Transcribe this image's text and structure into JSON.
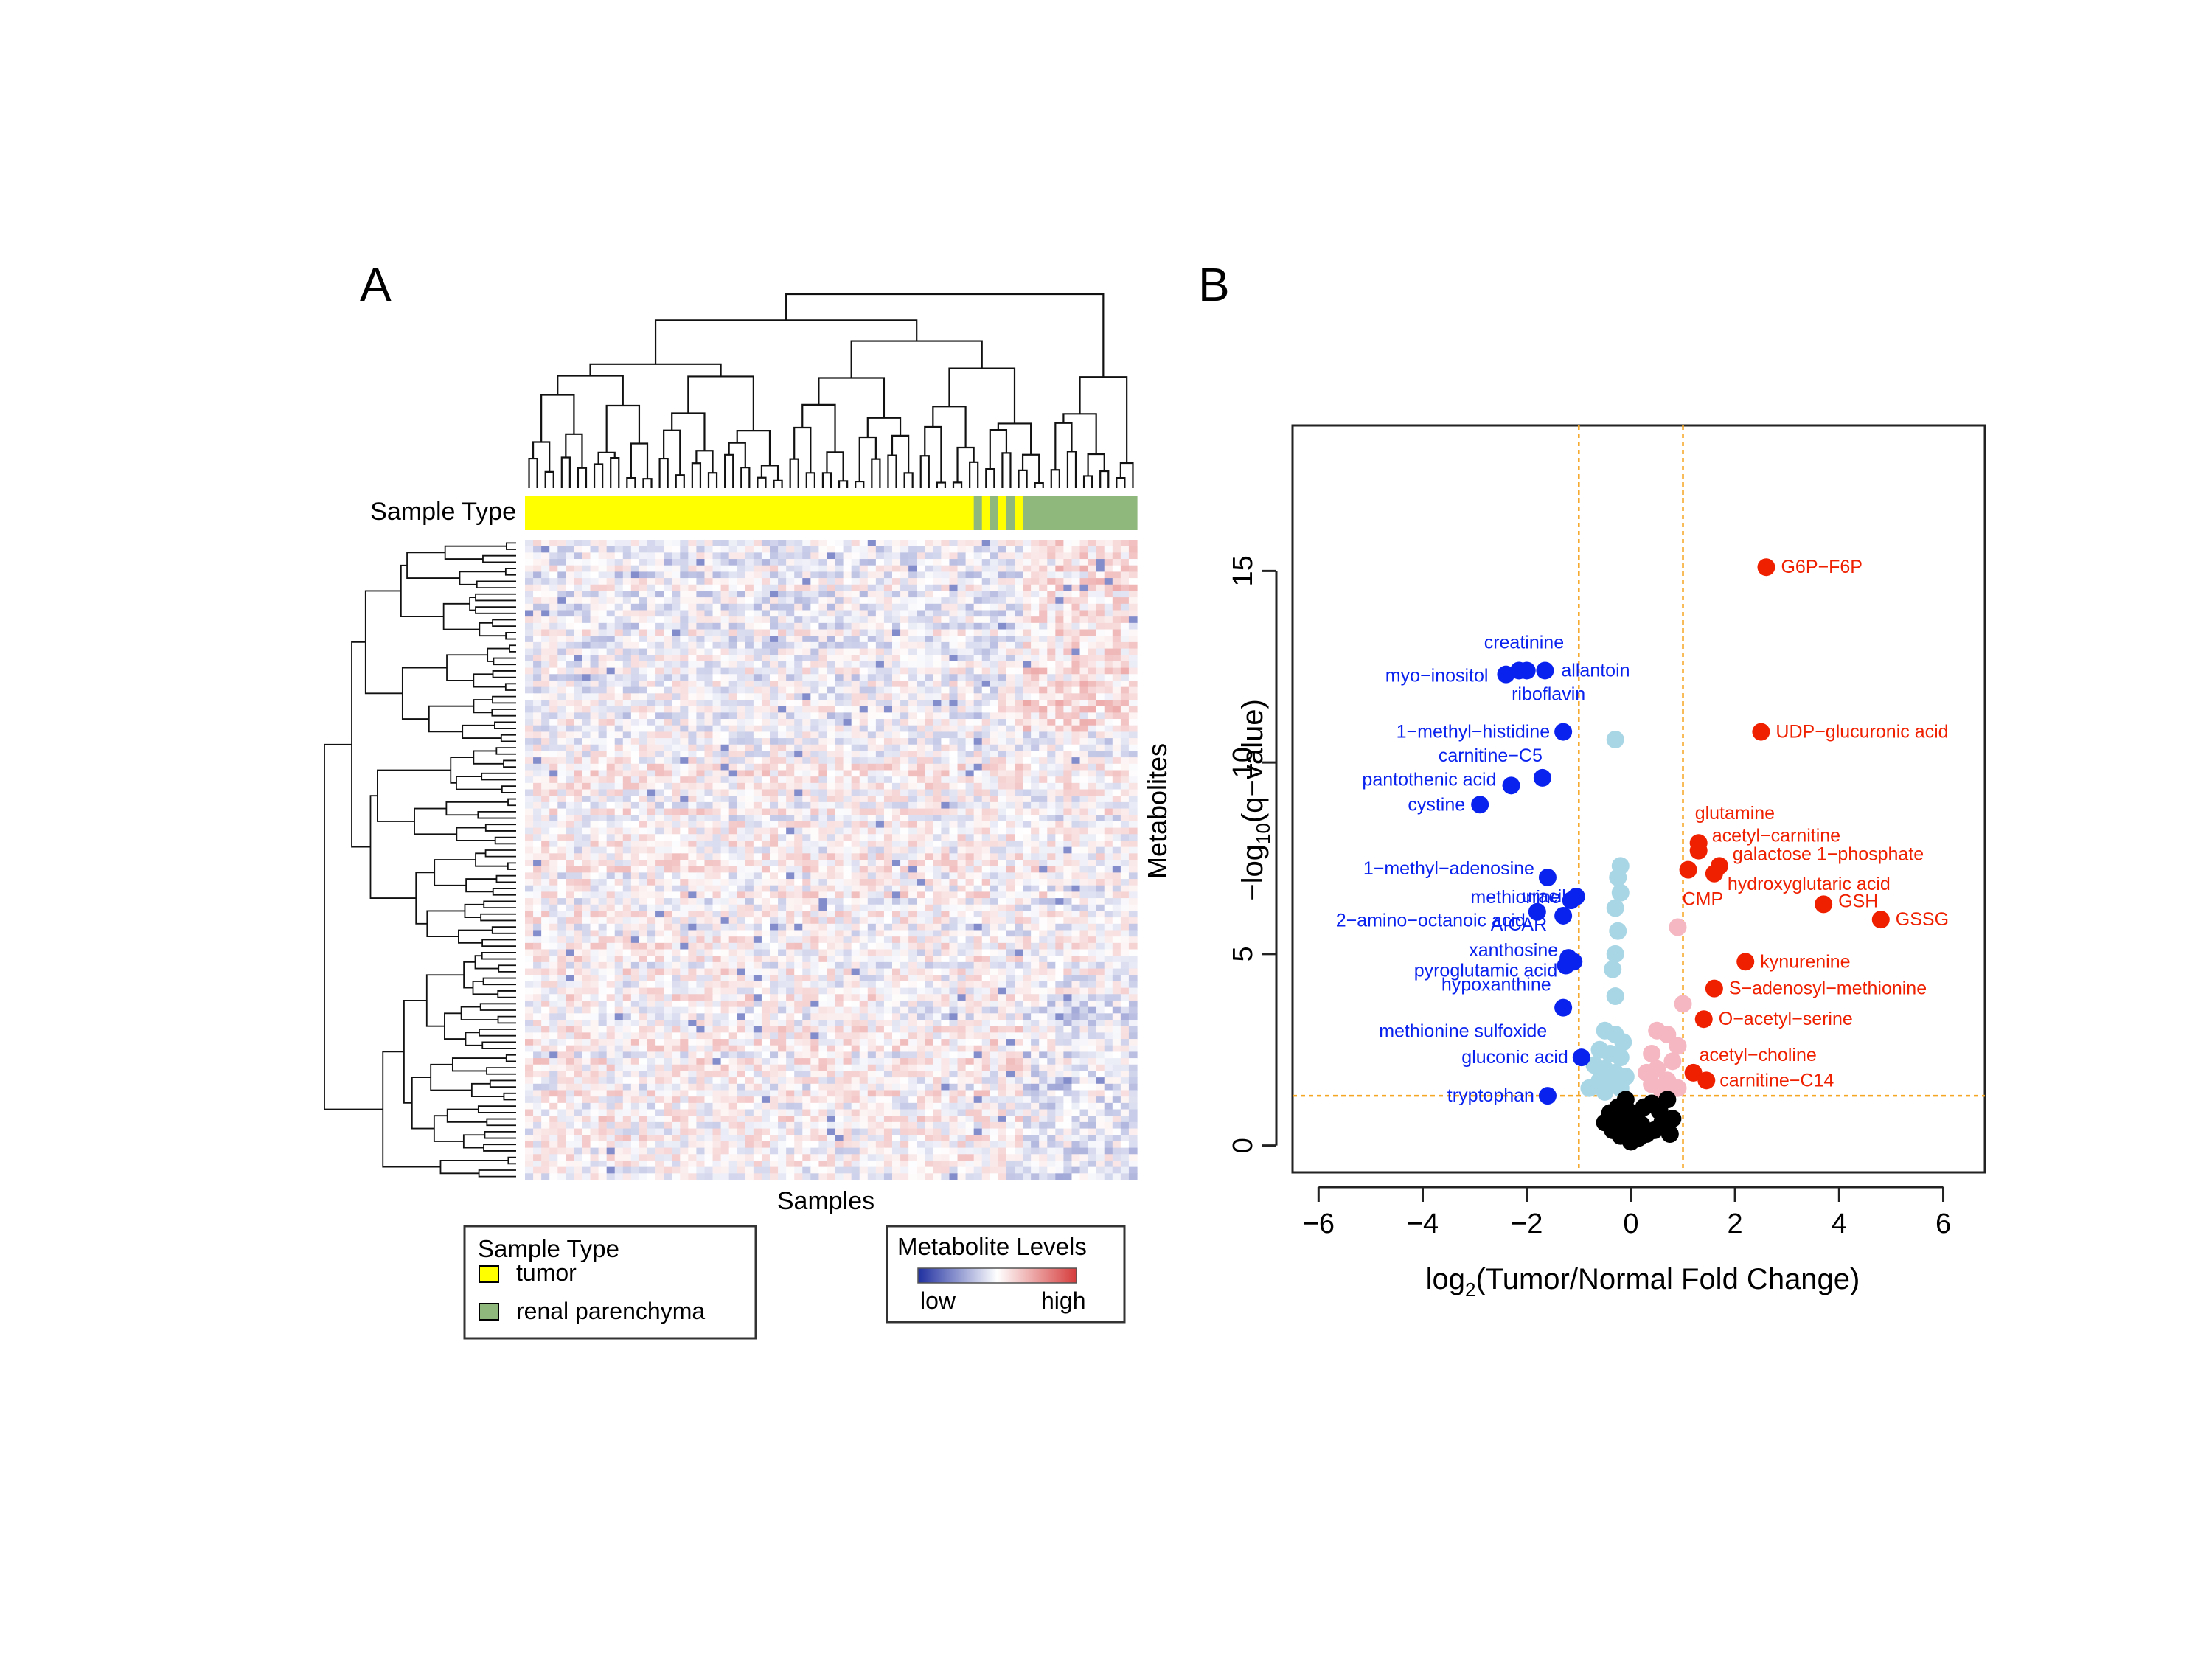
{
  "panel_a": {
    "label": "A",
    "sample_type_label": "Sample Type",
    "metabolites_label": "Metabolites",
    "samples_label": "Samples",
    "sample_groups": [
      {
        "name": "tumor",
        "count": 55,
        "color": "#ffff00"
      },
      {
        "name": "tumor / renal parenchyma (interleaved)",
        "pattern": [
          "#8fb87c",
          "#ffff00",
          "#8fb87c",
          "#ffff00",
          "#8fb87c",
          "#ffff00"
        ]
      },
      {
        "name": "renal parenchyma",
        "count": 20,
        "color": "#8fb87c"
      }
    ],
    "heatmap": {
      "cols": 75,
      "rows": 100,
      "low_color": "#1f2fa0",
      "mid_color": "#ffffff",
      "high_color": "#d63c3c"
    },
    "legend_sample_type": {
      "title": "Sample Type",
      "items": [
        {
          "label": "tumor",
          "color": "#ffff00"
        },
        {
          "label": "renal parenchyma",
          "color": "#8fb87c"
        }
      ]
    },
    "legend_levels": {
      "title": "Metabolite Levels",
      "low": "low",
      "high": "high"
    }
  },
  "panel_b": {
    "label": "B",
    "colors": {
      "down_sig": "#0a22ee",
      "down": "#a9d6e5",
      "up_sig": "#ee2000",
      "up": "#f5b7c2",
      "ns": "#000000",
      "threshold": "#f5a623"
    },
    "chart_data": {
      "type": "scatter",
      "title": "",
      "xlabel_main": "log",
      "xlabel_sub": "2",
      "xlabel_rest": "(Tumor/Normal Fold Change)",
      "ylabel_pre": "−log",
      "ylabel_sub": "10",
      "ylabel_rest": "(q−value)",
      "xlim": [
        -6.5,
        6.8
      ],
      "ylim": [
        -0.7,
        18.8
      ],
      "xticks": [
        -6,
        -4,
        -2,
        0,
        2,
        4,
        6
      ],
      "xtick_labels": [
        "−6",
        "−4",
        "−2",
        "0",
        "2",
        "4",
        "6"
      ],
      "yticks": [
        0,
        5,
        10,
        15
      ],
      "ytick_labels": [
        "0",
        "5",
        "10",
        "15"
      ],
      "thresholds": {
        "x": [
          -1,
          1
        ],
        "y": 1.3
      },
      "labeled_points": [
        {
          "name": "G6P−F6P",
          "x": 2.6,
          "y": 15.1,
          "group": "up_sig"
        },
        {
          "name": "UDP−glucuronic acid",
          "x": 2.5,
          "y": 10.8,
          "group": "up_sig"
        },
        {
          "name": "glutamine",
          "x": 1.3,
          "y": 7.9,
          "group": "up_sig"
        },
        {
          "name": "acetyl−carnitine",
          "x": 1.3,
          "y": 7.7,
          "group": "up_sig"
        },
        {
          "name": "galactose 1−phosphate",
          "x": 1.7,
          "y": 7.3,
          "group": "up_sig"
        },
        {
          "name": "CMP",
          "x": 1.1,
          "y": 7.2,
          "group": "up_sig"
        },
        {
          "name": "hydroxyglutaric acid",
          "x": 1.6,
          "y": 7.1,
          "group": "up_sig"
        },
        {
          "name": "GSH",
          "x": 3.7,
          "y": 6.3,
          "group": "up_sig"
        },
        {
          "name": "GSSG",
          "x": 4.8,
          "y": 5.9,
          "group": "up_sig"
        },
        {
          "name": "kynurenine",
          "x": 2.2,
          "y": 4.8,
          "group": "up_sig"
        },
        {
          "name": "S−adenosyl−methionine",
          "x": 1.6,
          "y": 4.1,
          "group": "up_sig"
        },
        {
          "name": "O−acetyl−serine",
          "x": 1.4,
          "y": 3.3,
          "group": "up_sig"
        },
        {
          "name": "acetyl−choline",
          "x": 1.2,
          "y": 1.9,
          "group": "up_sig"
        },
        {
          "name": "carnitine−C14",
          "x": 1.45,
          "y": 1.7,
          "group": "up_sig"
        },
        {
          "name": "creatinine",
          "x": -2.0,
          "y": 12.4,
          "group": "down_sig"
        },
        {
          "name": "myo−inositol",
          "x": -2.4,
          "y": 12.3,
          "group": "down_sig"
        },
        {
          "name": "allantoin",
          "x": -1.65,
          "y": 12.4,
          "group": "down_sig"
        },
        {
          "name": "riboflavin",
          "x": -2.15,
          "y": 12.4,
          "group": "down_sig"
        },
        {
          "name": "1−methyl−histidine",
          "x": -1.3,
          "y": 10.8,
          "group": "down_sig"
        },
        {
          "name": "carnitine−C5",
          "x": -1.7,
          "y": 9.6,
          "group": "down_sig"
        },
        {
          "name": "pantothenic acid",
          "x": -2.3,
          "y": 9.4,
          "group": "down_sig"
        },
        {
          "name": "cystine",
          "x": -2.9,
          "y": 8.9,
          "group": "down_sig"
        },
        {
          "name": "1−methyl−adenosine",
          "x": -1.6,
          "y": 7.0,
          "group": "down_sig"
        },
        {
          "name": "methionine",
          "x": -1.15,
          "y": 6.4,
          "group": "down_sig"
        },
        {
          "name": "uracil",
          "x": -1.05,
          "y": 6.5,
          "group": "down_sig"
        },
        {
          "name": "2−amino−octanoic acid",
          "x": -1.8,
          "y": 6.1,
          "group": "down_sig"
        },
        {
          "name": "AICAR",
          "x": -1.3,
          "y": 6.0,
          "group": "down_sig"
        },
        {
          "name": "xanthosine",
          "x": -1.2,
          "y": 4.9,
          "group": "down_sig"
        },
        {
          "name": "pyroglutamic acid",
          "x": -1.1,
          "y": 4.8,
          "group": "down_sig"
        },
        {
          "name": "hypoxanthine",
          "x": -1.25,
          "y": 4.7,
          "group": "down_sig"
        },
        {
          "name": "methionine sulfoxide",
          "x": -1.3,
          "y": 3.6,
          "group": "down_sig"
        },
        {
          "name": "gluconic acid",
          "x": -0.95,
          "y": 2.3,
          "group": "down_sig"
        },
        {
          "name": "tryptophan",
          "x": -1.6,
          "y": 1.3,
          "group": "down_sig"
        }
      ],
      "unlabeled_points": [
        {
          "x": -0.3,
          "y": 10.6,
          "group": "down"
        },
        {
          "x": -0.2,
          "y": 7.3,
          "group": "down"
        },
        {
          "x": -0.25,
          "y": 7.0,
          "group": "down"
        },
        {
          "x": -0.2,
          "y": 6.6,
          "group": "down"
        },
        {
          "x": -0.3,
          "y": 6.2,
          "group": "down"
        },
        {
          "x": -0.25,
          "y": 5.6,
          "group": "down"
        },
        {
          "x": -0.3,
          "y": 5.0,
          "group": "down"
        },
        {
          "x": -0.35,
          "y": 4.6,
          "group": "down"
        },
        {
          "x": -0.3,
          "y": 3.9,
          "group": "down"
        },
        {
          "x": -0.5,
          "y": 3.0,
          "group": "down"
        },
        {
          "x": -0.3,
          "y": 2.9,
          "group": "down"
        },
        {
          "x": -0.15,
          "y": 2.7,
          "group": "down"
        },
        {
          "x": -0.6,
          "y": 2.5,
          "group": "down"
        },
        {
          "x": -0.4,
          "y": 2.4,
          "group": "down"
        },
        {
          "x": -0.2,
          "y": 2.3,
          "group": "down"
        },
        {
          "x": -0.7,
          "y": 2.1,
          "group": "down"
        },
        {
          "x": -0.5,
          "y": 2.0,
          "group": "down"
        },
        {
          "x": -0.3,
          "y": 1.9,
          "group": "down"
        },
        {
          "x": -0.1,
          "y": 1.8,
          "group": "down"
        },
        {
          "x": -0.6,
          "y": 1.7,
          "group": "down"
        },
        {
          "x": -0.4,
          "y": 1.6,
          "group": "down"
        },
        {
          "x": -0.8,
          "y": 1.5,
          "group": "down"
        },
        {
          "x": -0.2,
          "y": 1.5,
          "group": "down"
        },
        {
          "x": -0.5,
          "y": 1.4,
          "group": "down"
        },
        {
          "x": 0.9,
          "y": 5.7,
          "group": "up"
        },
        {
          "x": 1.0,
          "y": 3.7,
          "group": "up"
        },
        {
          "x": 0.5,
          "y": 3.0,
          "group": "up"
        },
        {
          "x": 0.7,
          "y": 2.9,
          "group": "up"
        },
        {
          "x": 0.9,
          "y": 2.6,
          "group": "up"
        },
        {
          "x": 0.4,
          "y": 2.4,
          "group": "up"
        },
        {
          "x": 0.8,
          "y": 2.2,
          "group": "up"
        },
        {
          "x": 0.5,
          "y": 2.0,
          "group": "up"
        },
        {
          "x": 0.3,
          "y": 1.9,
          "group": "up"
        },
        {
          "x": 0.7,
          "y": 1.7,
          "group": "up"
        },
        {
          "x": 0.4,
          "y": 1.6,
          "group": "up"
        },
        {
          "x": 0.9,
          "y": 1.5,
          "group": "up"
        },
        {
          "x": 0.6,
          "y": 1.4,
          "group": "up"
        },
        {
          "x": -0.1,
          "y": 1.2,
          "group": "ns"
        },
        {
          "x": -0.25,
          "y": 1.0,
          "group": "ns"
        },
        {
          "x": -0.4,
          "y": 0.85,
          "group": "ns"
        },
        {
          "x": -0.3,
          "y": 0.7,
          "group": "ns"
        },
        {
          "x": -0.15,
          "y": 0.6,
          "group": "ns"
        },
        {
          "x": 0.0,
          "y": 0.5,
          "group": "ns"
        },
        {
          "x": 0.1,
          "y": 0.8,
          "group": "ns"
        },
        {
          "x": 0.25,
          "y": 1.0,
          "group": "ns"
        },
        {
          "x": 0.4,
          "y": 1.1,
          "group": "ns"
        },
        {
          "x": 0.55,
          "y": 0.9,
          "group": "ns"
        },
        {
          "x": 0.7,
          "y": 1.2,
          "group": "ns"
        },
        {
          "x": 0.6,
          "y": 0.6,
          "group": "ns"
        },
        {
          "x": 0.45,
          "y": 0.4,
          "group": "ns"
        },
        {
          "x": 0.3,
          "y": 0.3,
          "group": "ns"
        },
        {
          "x": 0.15,
          "y": 0.2,
          "group": "ns"
        },
        {
          "x": 0.0,
          "y": 0.1,
          "group": "ns"
        },
        {
          "x": -0.2,
          "y": 0.25,
          "group": "ns"
        },
        {
          "x": -0.35,
          "y": 0.4,
          "group": "ns"
        },
        {
          "x": -0.5,
          "y": 0.6,
          "group": "ns"
        },
        {
          "x": 0.8,
          "y": 0.7,
          "group": "ns"
        },
        {
          "x": 0.75,
          "y": 0.3,
          "group": "ns"
        },
        {
          "x": 0.2,
          "y": 0.55,
          "group": "ns"
        },
        {
          "x": -0.05,
          "y": 0.9,
          "group": "ns"
        }
      ]
    }
  }
}
